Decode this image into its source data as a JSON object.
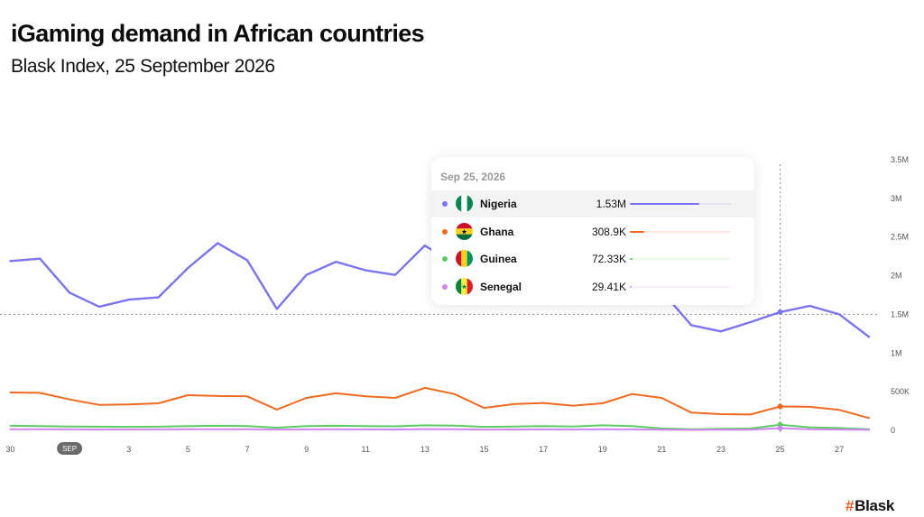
{
  "header": {
    "title": "iGaming demand in African countries",
    "subtitle": "Blask Index, 25 September 2026"
  },
  "brand": {
    "hash": "#",
    "name": "Blask"
  },
  "tooltip": {
    "date": "Sep 25, 2026",
    "rows": [
      {
        "name": "Nigeria",
        "value_label": "1.53M",
        "share": 0.69,
        "color": "#7b74f0",
        "flag": "nigeria-flag"
      },
      {
        "name": "Ghana",
        "value_label": "308.9K",
        "share": 0.14,
        "color": "#ef6a1f",
        "flag": "ghana-flag"
      },
      {
        "name": "Guinea",
        "value_label": "72.33K",
        "share": 0.03,
        "color": "#5ccc63",
        "flag": "guinea-flag"
      },
      {
        "name": "Senegal",
        "value_label": "29.41K",
        "share": 0.015,
        "color": "#cf84f2",
        "flag": "senegal-flag"
      }
    ]
  },
  "chart_data": {
    "type": "line",
    "title": "iGaming demand in African countries",
    "subtitle": "Blask Index, 25 September 2026",
    "x": [
      "2026-08-30",
      "2026-08-31",
      "2026-09-01",
      "2026-09-02",
      "2026-09-03",
      "2026-09-04",
      "2026-09-05",
      "2026-09-06",
      "2026-09-07",
      "2026-09-08",
      "2026-09-09",
      "2026-09-10",
      "2026-09-11",
      "2026-09-12",
      "2026-09-13",
      "2026-09-14",
      "2026-09-15",
      "2026-09-16",
      "2026-09-17",
      "2026-09-18",
      "2026-09-19",
      "2026-09-20",
      "2026-09-21",
      "2026-09-22",
      "2026-09-23",
      "2026-09-24",
      "2026-09-25",
      "2026-09-26",
      "2026-09-27",
      "2026-09-28"
    ],
    "x_tick_labels": [
      {
        "date": "2026-08-30",
        "label": "30"
      },
      {
        "date": "2026-09-01",
        "label": "SEP",
        "month": true
      },
      {
        "date": "2026-09-03",
        "label": "3"
      },
      {
        "date": "2026-09-05",
        "label": "5"
      },
      {
        "date": "2026-09-07",
        "label": "7"
      },
      {
        "date": "2026-09-09",
        "label": "9"
      },
      {
        "date": "2026-09-11",
        "label": "11"
      },
      {
        "date": "2026-09-13",
        "label": "13"
      },
      {
        "date": "2026-09-15",
        "label": "15"
      },
      {
        "date": "2026-09-17",
        "label": "17"
      },
      {
        "date": "2026-09-19",
        "label": "19"
      },
      {
        "date": "2026-09-21",
        "label": "21"
      },
      {
        "date": "2026-09-23",
        "label": "23"
      },
      {
        "date": "2026-09-25",
        "label": "25"
      },
      {
        "date": "2026-09-27",
        "label": "27"
      }
    ],
    "y_ticks": [
      0,
      500000,
      1000000,
      1500000,
      2000000,
      2500000,
      3000000,
      3500000
    ],
    "y_tick_labels": [
      "0",
      "500K",
      "1M",
      "1.5M",
      "2M",
      "2.5M",
      "3M",
      "3.5M"
    ],
    "ylim": [
      0,
      3500000
    ],
    "x_range": [
      "2026-08-29.6",
      "2026-09-28"
    ],
    "grid": false,
    "y_axis_side": "right",
    "crosshair": {
      "x": "2026-09-25",
      "y": 1500000
    },
    "series": [
      {
        "name": "Nigeria",
        "color": "#7b74f0",
        "values": [
          2190000,
          2220000,
          1780000,
          1600000,
          1690000,
          1720000,
          2100000,
          2420000,
          2200000,
          1570000,
          2010000,
          2180000,
          2070000,
          2010000,
          2390000,
          2150000,
          2000000,
          2000000,
          2000000,
          2000000,
          2000000,
          2050000,
          1800000,
          1360000,
          1280000,
          1400000,
          1530000,
          1610000,
          1500000,
          1210000
        ]
      },
      {
        "name": "Ghana",
        "color": "#ef6a1f",
        "values": [
          490000,
          485000,
          400000,
          330000,
          335000,
          350000,
          455000,
          445000,
          440000,
          270000,
          420000,
          480000,
          440000,
          420000,
          550000,
          470000,
          290000,
          340000,
          355000,
          320000,
          350000,
          470000,
          420000,
          230000,
          210000,
          205000,
          308900,
          305000,
          265000,
          160000
        ]
      },
      {
        "name": "Guinea",
        "color": "#5ccc63",
        "values": [
          60000,
          55000,
          50000,
          48000,
          45000,
          48000,
          55000,
          60000,
          55000,
          35000,
          55000,
          60000,
          55000,
          52000,
          65000,
          62000,
          45000,
          50000,
          55000,
          50000,
          65000,
          55000,
          25000,
          15000,
          20000,
          25000,
          72330,
          40000,
          30000,
          15000
        ]
      },
      {
        "name": "Senegal",
        "color": "#cf84f2",
        "values": [
          15000,
          14000,
          13000,
          12000,
          12000,
          13000,
          14000,
          15000,
          14000,
          10000,
          13000,
          14000,
          13000,
          12000,
          16000,
          15000,
          11000,
          12000,
          13000,
          12000,
          14000,
          13000,
          9000,
          7000,
          8000,
          9000,
          29410,
          14000,
          11000,
          9000
        ]
      }
    ]
  }
}
